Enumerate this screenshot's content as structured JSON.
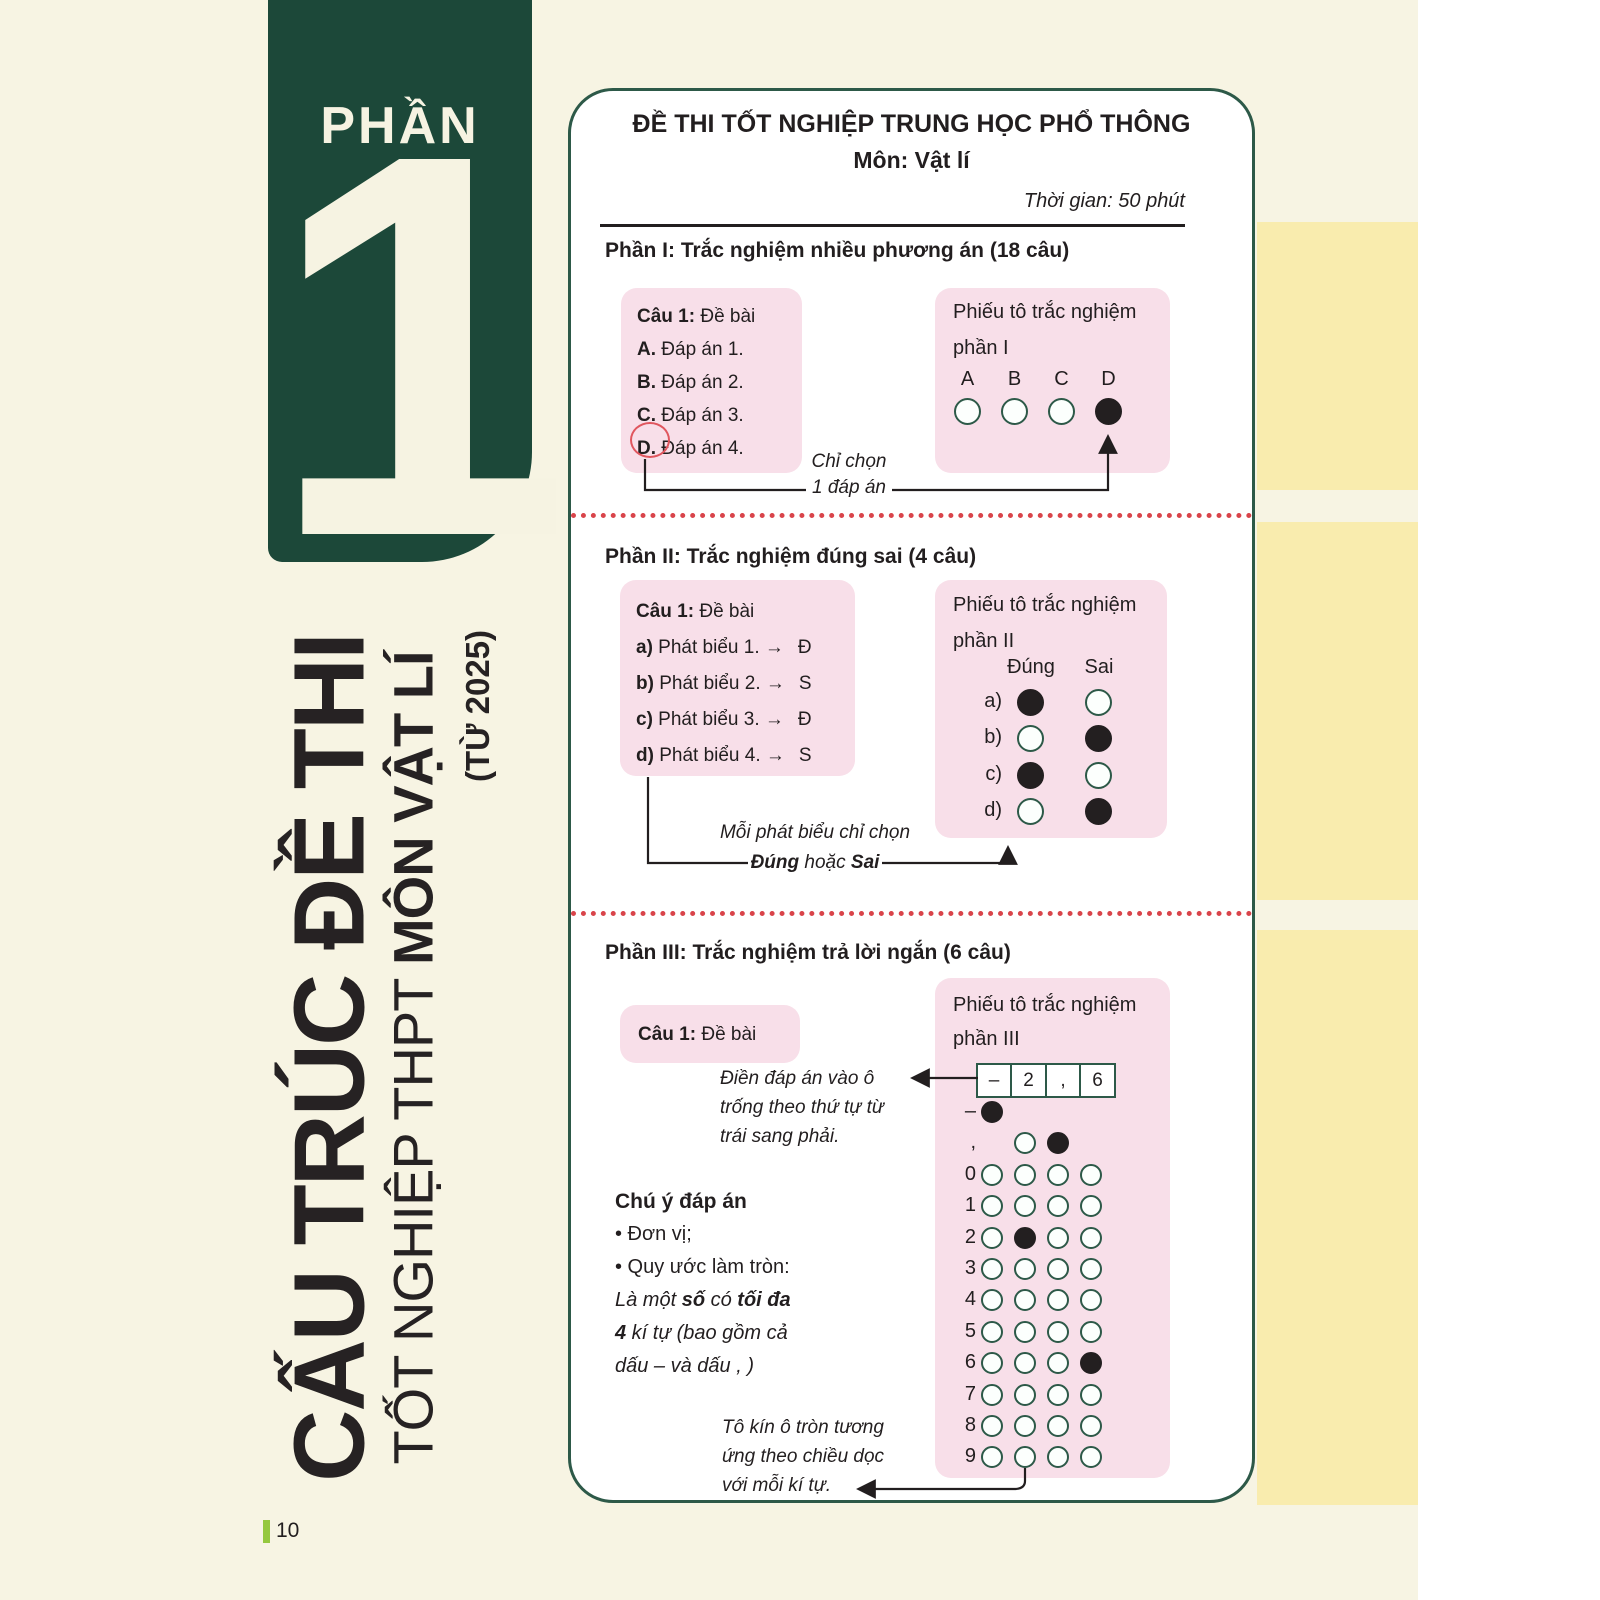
{
  "colors": {
    "cream": "#f7f4e3",
    "green_box": "#1c4839",
    "doc_border_green": "#2d5948",
    "pink_box": "#f8dfe9",
    "yellow_band": "#f9ecae",
    "red_dotted": "#d9444a",
    "bubble_filled": "#231f20",
    "red_circle": "#e0565e",
    "page_bar_green": "#95c83e"
  },
  "sidebar": {
    "phan_label": "PHẦN",
    "part_number": "1",
    "title_big": "CẤU TRÚC ĐỀ THI",
    "title_sub_regular": "TỐT NGHIỆP THPT ",
    "title_sub_bold": "MÔN VẬT LÍ",
    "title_year": "(TỪ 2025)",
    "page_number": "10"
  },
  "doc": {
    "title": "ĐỀ THI TỐT NGHIỆP TRUNG HỌC PHỔ THÔNG",
    "subject": "Môn: Vật lí",
    "time": "Thời gian: 50 phút",
    "part1": {
      "header": "Phần I: Trắc nghiệm nhiều phương án (18 câu)",
      "question": {
        "cau": "Câu 1:",
        "cau_text": " Đề bài",
        "options": [
          {
            "k": "A.",
            "t": " Đáp án 1."
          },
          {
            "k": "B.",
            "t": " Đáp án 2."
          },
          {
            "k": "C.",
            "t": " Đáp án 3."
          },
          {
            "k": "D.",
            "t": " Đáp án 4."
          }
        ]
      },
      "sheet": {
        "line1": "Phiếu tô trắc nghiệm",
        "line2": "phần I",
        "bubbles": [
          {
            "label": "A",
            "state": "o"
          },
          {
            "label": "B",
            "state": "o"
          },
          {
            "label": "C",
            "state": "o"
          },
          {
            "label": "D",
            "state": "f"
          }
        ]
      },
      "note1": "Chỉ chọn",
      "note2": "1 đáp án"
    },
    "part2": {
      "header": "Phần II: Trắc nghiệm đúng sai (4 câu)",
      "question": {
        "cau": "Câu 1:",
        "cau_text": " Đề bài",
        "statements": [
          {
            "k": "a)",
            "t": " Phát biểu 1. →",
            "v": "Đ"
          },
          {
            "k": "b)",
            "t": " Phát biểu 2. →",
            "v": "S"
          },
          {
            "k": "c)",
            "t": " Phát biểu 3. →",
            "v": "Đ"
          },
          {
            "k": "d)",
            "t": " Phát biểu 4. →",
            "v": "S"
          }
        ]
      },
      "sheet": {
        "line1": "Phiếu tô trắc nghiệm",
        "line2": "phần II",
        "col_true": "Đúng",
        "col_false": "Sai",
        "rows": [
          {
            "label": "a)",
            "dung": "f",
            "sai": "o"
          },
          {
            "label": "b)",
            "dung": "o",
            "sai": "f"
          },
          {
            "label": "c)",
            "dung": "f",
            "sai": "o"
          },
          {
            "label": "d)",
            "dung": "o",
            "sai": "f"
          }
        ]
      },
      "note1": "Mỗi phát biểu chỉ chọn",
      "note2_b1": "Đúng",
      "note2_mid": " hoặc ",
      "note2_b2": "Sai"
    },
    "part3": {
      "header": "Phần III: Trắc nghiệm trả lời ngắn (6 câu)",
      "question": {
        "cau": "Câu 1:",
        "cau_text": " Đề bài"
      },
      "sheet": {
        "line1": "Phiếu tô trắc nghiệm",
        "line2": "phần III",
        "cells": [
          "–",
          "2",
          ",",
          "6"
        ],
        "grid": [
          {
            "label": "–",
            "bubbles": [
              "f",
              "",
              "",
              ""
            ]
          },
          {
            "label": ",",
            "bubbles": [
              "",
              "o",
              "f",
              ""
            ]
          },
          {
            "label": "0",
            "bubbles": [
              "o",
              "o",
              "o",
              "o"
            ]
          },
          {
            "label": "1",
            "bubbles": [
              "o",
              "o",
              "o",
              "o"
            ]
          },
          {
            "label": "2",
            "bubbles": [
              "o",
              "f",
              "o",
              "o"
            ]
          },
          {
            "label": "3",
            "bubbles": [
              "o",
              "o",
              "o",
              "o"
            ]
          },
          {
            "label": "4",
            "bubbles": [
              "o",
              "o",
              "o",
              "o"
            ]
          },
          {
            "label": "5",
            "bubbles": [
              "o",
              "o",
              "o",
              "o"
            ]
          },
          {
            "label": "6",
            "bubbles": [
              "o",
              "o",
              "o",
              "f"
            ]
          },
          {
            "label": "7",
            "bubbles": [
              "o",
              "o",
              "o",
              "o"
            ]
          },
          {
            "label": "8",
            "bubbles": [
              "o",
              "o",
              "o",
              "o"
            ]
          },
          {
            "label": "9",
            "bubbles": [
              "o",
              "o",
              "o",
              "o"
            ]
          }
        ]
      },
      "fill_note": [
        "Điền đáp án vào ô",
        "trống theo thứ tự từ",
        "trái sang phải."
      ],
      "attention_title": "Chú ý đáp án",
      "bullet1": "• Đơn vị;",
      "bullet2": "• Quy ước làm tròn:",
      "i1_pre": "Là một ",
      "i1_b1": "số",
      "i1_mid": " có ",
      "i1_b2": "tối đa",
      "i2_b": "4",
      "i2_rest": " kí tự (bao gồm cả",
      "i3": "dấu – và dấu , )",
      "shade_note": [
        "Tô kín ô tròn  tương",
        "ứng theo chiều dọc",
        "với mỗi kí tự."
      ]
    }
  }
}
